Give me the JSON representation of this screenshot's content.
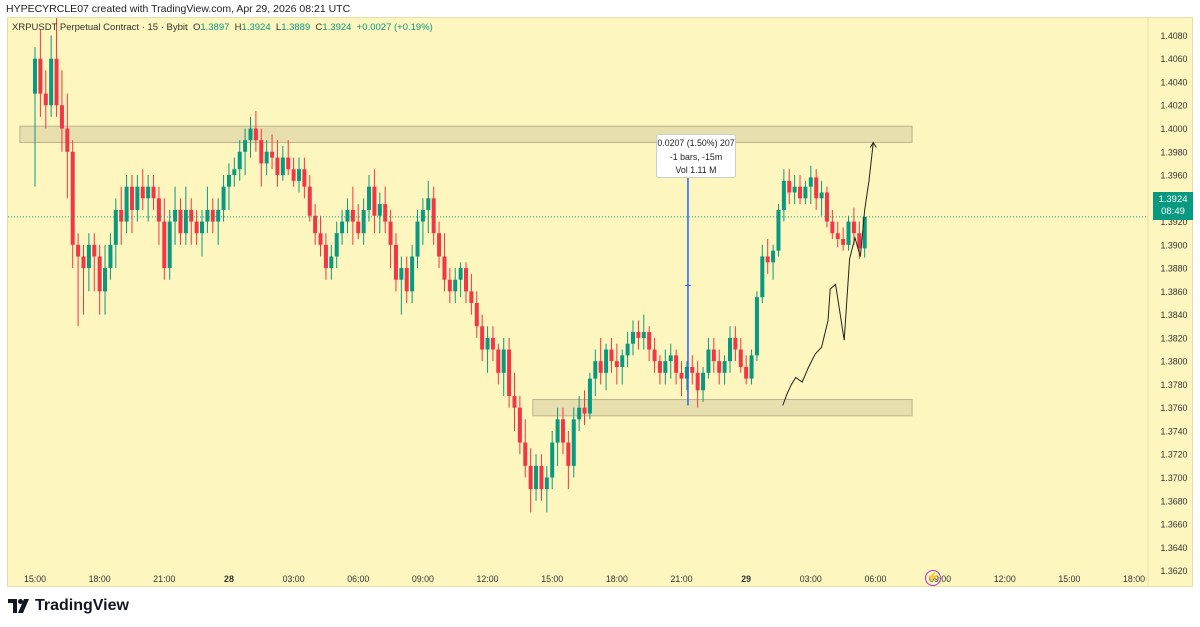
{
  "caption": "HYPECYRCLE07 created with TradingView.com, Apr 29, 2026 08:21 UTC",
  "brand": "TradingView",
  "symbol_line": {
    "symbol": "XRPUSDT Perpetual Contract · 15 · Bybit",
    "o_label": "O",
    "o": "1.3897",
    "h_label": "H",
    "h": "1.3924",
    "l_label": "L",
    "l": "1.3889",
    "c_label": "C",
    "c": "1.3924",
    "change": "+0.0027 (+0.19%)"
  },
  "last_price": {
    "price": "1.3924",
    "countdown": "08:49"
  },
  "measure": {
    "line1": "0.0207 (1.50%) 207",
    "line2": "-1 bars, -15m",
    "line3": "Vol 1.11 M"
  },
  "colors": {
    "up": "#089981",
    "down": "#f23645",
    "background": "#fdf6bf",
    "zone": "#e8dfae",
    "measure": "#2962ff"
  },
  "chart_data": {
    "type": "candlestick",
    "timeframe": "15",
    "ylim": [
      1.3605,
      1.4095
    ],
    "y_ticks": [
      "1.4080",
      "1.4060",
      "1.4040",
      "1.4020",
      "1.4000",
      "1.3980",
      "1.3960",
      "1.3940",
      "1.3920",
      "1.3900",
      "1.3880",
      "1.3860",
      "1.3840",
      "1.3820",
      "1.3800",
      "1.3780",
      "1.3760",
      "1.3740",
      "1.3720",
      "1.3700",
      "1.3680",
      "1.3660",
      "1.3640",
      "1.3620"
    ],
    "x_ticks": [
      "15:00",
      "18:00",
      "21:00",
      "28",
      "03:00",
      "06:00",
      "09:00",
      "12:00",
      "15:00",
      "18:00",
      "21:00",
      "29",
      "03:00",
      "06:00",
      "09:00",
      "12:00",
      "15:00",
      "18:00"
    ],
    "x_tick_hours": [
      0,
      3,
      6,
      9,
      12,
      15,
      18,
      21,
      24,
      27,
      30,
      33,
      36,
      39,
      42,
      45,
      48,
      51
    ],
    "zones": [
      {
        "from_hour": -0.7,
        "to_hour": 40.7,
        "low": 1.3988,
        "high": 1.4002
      },
      {
        "from_hour": 23.1,
        "to_hour": 40.7,
        "low": 1.3753,
        "high": 1.3767
      }
    ],
    "measure_arrow": {
      "hour": 30.3,
      "from": 1.3762,
      "to": 1.3969
    },
    "candles": [
      [
        1.403,
        1.407,
        1.395,
        1.406
      ],
      [
        1.406,
        1.4085,
        1.401,
        1.403
      ],
      [
        1.403,
        1.405,
        1.4,
        1.402
      ],
      [
        1.402,
        1.408,
        1.401,
        1.406
      ],
      [
        1.406,
        1.411,
        1.401,
        1.402
      ],
      [
        1.402,
        1.405,
        1.398,
        1.4
      ],
      [
        1.4,
        1.403,
        1.394,
        1.398
      ],
      [
        1.398,
        1.399,
        1.388,
        1.39
      ],
      [
        1.39,
        1.391,
        1.383,
        1.389
      ],
      [
        1.389,
        1.39,
        1.384,
        1.388
      ],
      [
        1.388,
        1.391,
        1.386,
        1.39
      ],
      [
        1.39,
        1.391,
        1.386,
        1.389
      ],
      [
        1.389,
        1.39,
        1.384,
        1.386
      ],
      [
        1.386,
        1.39,
        1.384,
        1.388
      ],
      [
        1.388,
        1.391,
        1.387,
        1.39
      ],
      [
        1.39,
        1.394,
        1.388,
        1.393
      ],
      [
        1.393,
        1.395,
        1.39,
        1.392
      ],
      [
        1.392,
        1.396,
        1.391,
        1.395
      ],
      [
        1.395,
        1.396,
        1.391,
        1.393
      ],
      [
        1.393,
        1.396,
        1.392,
        1.395
      ],
      [
        1.395,
        1.3965,
        1.393,
        1.394
      ],
      [
        1.394,
        1.396,
        1.392,
        1.395
      ],
      [
        1.395,
        1.396,
        1.393,
        1.394
      ],
      [
        1.394,
        1.395,
        1.39,
        1.392
      ],
      [
        1.392,
        1.394,
        1.387,
        1.388
      ],
      [
        1.388,
        1.393,
        1.387,
        1.392
      ],
      [
        1.392,
        1.395,
        1.39,
        1.393
      ],
      [
        1.393,
        1.394,
        1.39,
        1.391
      ],
      [
        1.391,
        1.395,
        1.39,
        1.393
      ],
      [
        1.393,
        1.394,
        1.39,
        1.392
      ],
      [
        1.392,
        1.393,
        1.39,
        1.391
      ],
      [
        1.391,
        1.393,
        1.389,
        1.392
      ],
      [
        1.392,
        1.395,
        1.391,
        1.393
      ],
      [
        1.393,
        1.394,
        1.391,
        1.392
      ],
      [
        1.392,
        1.394,
        1.39,
        1.393
      ],
      [
        1.393,
        1.396,
        1.392,
        1.395
      ],
      [
        1.395,
        1.397,
        1.393,
        1.396
      ],
      [
        1.396,
        1.3975,
        1.395,
        1.3965
      ],
      [
        1.3965,
        1.399,
        1.3955,
        1.398
      ],
      [
        1.398,
        1.4,
        1.396,
        1.399
      ],
      [
        1.399,
        1.401,
        1.3975,
        1.4
      ],
      [
        1.4,
        1.4015,
        1.398,
        1.399
      ],
      [
        1.399,
        1.4,
        1.395,
        1.397
      ],
      [
        1.397,
        1.399,
        1.396,
        1.398
      ],
      [
        1.398,
        1.3995,
        1.3965,
        1.3975
      ],
      [
        1.3975,
        1.399,
        1.395,
        1.396
      ],
      [
        1.396,
        1.3985,
        1.3955,
        1.3975
      ],
      [
        1.3975,
        1.399,
        1.396,
        1.3965
      ],
      [
        1.3965,
        1.3975,
        1.395,
        1.3955
      ],
      [
        1.3955,
        1.3975,
        1.3945,
        1.3965
      ],
      [
        1.3965,
        1.3975,
        1.394,
        1.395
      ],
      [
        1.395,
        1.396,
        1.392,
        1.3925
      ],
      [
        1.3925,
        1.3935,
        1.39,
        1.391
      ],
      [
        1.391,
        1.3925,
        1.389,
        1.39
      ],
      [
        1.39,
        1.391,
        1.387,
        1.388
      ],
      [
        1.388,
        1.39,
        1.387,
        1.389
      ],
      [
        1.389,
        1.392,
        1.388,
        1.391
      ],
      [
        1.391,
        1.393,
        1.39,
        1.392
      ],
      [
        1.392,
        1.394,
        1.391,
        1.393
      ],
      [
        1.393,
        1.395,
        1.39,
        1.392
      ],
      [
        1.392,
        1.3935,
        1.3905,
        1.391
      ],
      [
        1.391,
        1.394,
        1.39,
        1.393
      ],
      [
        1.393,
        1.396,
        1.392,
        1.395
      ],
      [
        1.395,
        1.3965,
        1.391,
        1.3925
      ],
      [
        1.3925,
        1.3945,
        1.391,
        1.3935
      ],
      [
        1.3935,
        1.395,
        1.391,
        1.392
      ],
      [
        1.392,
        1.393,
        1.388,
        1.39
      ],
      [
        1.39,
        1.391,
        1.386,
        1.387
      ],
      [
        1.387,
        1.389,
        1.384,
        1.388
      ],
      [
        1.388,
        1.389,
        1.385,
        1.386
      ],
      [
        1.386,
        1.39,
        1.385,
        1.389
      ],
      [
        1.389,
        1.393,
        1.388,
        1.392
      ],
      [
        1.392,
        1.394,
        1.39,
        1.393
      ],
      [
        1.393,
        1.3955,
        1.391,
        1.394
      ],
      [
        1.394,
        1.395,
        1.39,
        1.391
      ],
      [
        1.391,
        1.392,
        1.388,
        1.389
      ],
      [
        1.389,
        1.391,
        1.386,
        1.387
      ],
      [
        1.387,
        1.388,
        1.385,
        1.386
      ],
      [
        1.386,
        1.388,
        1.385,
        1.387
      ],
      [
        1.387,
        1.3885,
        1.3855,
        1.388
      ],
      [
        1.388,
        1.3885,
        1.385,
        1.386
      ],
      [
        1.386,
        1.3875,
        1.384,
        1.385
      ],
      [
        1.385,
        1.386,
        1.382,
        1.383
      ],
      [
        1.383,
        1.384,
        1.38,
        1.381
      ],
      [
        1.381,
        1.383,
        1.379,
        1.382
      ],
      [
        1.382,
        1.383,
        1.38,
        1.381
      ],
      [
        1.381,
        1.3815,
        1.378,
        1.379
      ],
      [
        1.379,
        1.382,
        1.377,
        1.381
      ],
      [
        1.381,
        1.382,
        1.376,
        1.377
      ],
      [
        1.377,
        1.379,
        1.374,
        1.376
      ],
      [
        1.376,
        1.377,
        1.372,
        1.373
      ],
      [
        1.373,
        1.375,
        1.37,
        1.371
      ],
      [
        1.371,
        1.3725,
        1.367,
        1.369
      ],
      [
        1.369,
        1.372,
        1.368,
        1.371
      ],
      [
        1.371,
        1.372,
        1.368,
        1.369
      ],
      [
        1.369,
        1.371,
        1.367,
        1.37
      ],
      [
        1.37,
        1.374,
        1.369,
        1.373
      ],
      [
        1.373,
        1.376,
        1.371,
        1.375
      ],
      [
        1.375,
        1.376,
        1.372,
        1.373
      ],
      [
        1.373,
        1.374,
        1.369,
        1.371
      ],
      [
        1.371,
        1.376,
        1.37,
        1.375
      ],
      [
        1.375,
        1.377,
        1.374,
        1.376
      ],
      [
        1.376,
        1.3775,
        1.3745,
        1.3755
      ],
      [
        1.3755,
        1.379,
        1.375,
        1.3785
      ],
      [
        1.3785,
        1.381,
        1.377,
        1.38
      ],
      [
        1.38,
        1.382,
        1.378,
        1.379
      ],
      [
        1.379,
        1.3815,
        1.3775,
        1.381
      ],
      [
        1.381,
        1.382,
        1.379,
        1.38
      ],
      [
        1.38,
        1.3815,
        1.378,
        1.3795
      ],
      [
        1.3795,
        1.381,
        1.378,
        1.3805
      ],
      [
        1.3805,
        1.3825,
        1.3795,
        1.3815
      ],
      [
        1.3815,
        1.3835,
        1.3805,
        1.3825
      ],
      [
        1.3825,
        1.3835,
        1.381,
        1.382
      ],
      [
        1.382,
        1.384,
        1.381,
        1.3825
      ],
      [
        1.3825,
        1.383,
        1.38,
        1.381
      ],
      [
        1.381,
        1.382,
        1.379,
        1.38
      ],
      [
        1.38,
        1.3805,
        1.378,
        1.379
      ],
      [
        1.379,
        1.381,
        1.378,
        1.38
      ],
      [
        1.38,
        1.3815,
        1.3785,
        1.3805
      ],
      [
        1.3805,
        1.381,
        1.378,
        1.379
      ],
      [
        1.379,
        1.38,
        1.377,
        1.3785
      ],
      [
        1.3785,
        1.38,
        1.3775,
        1.3795
      ],
      [
        1.3795,
        1.3805,
        1.378,
        1.379
      ],
      [
        1.379,
        1.38,
        1.376,
        1.3775
      ],
      [
        1.3775,
        1.3795,
        1.3765,
        1.379
      ],
      [
        1.379,
        1.382,
        1.3785,
        1.381
      ],
      [
        1.381,
        1.382,
        1.379,
        1.38
      ],
      [
        1.38,
        1.381,
        1.378,
        1.379
      ],
      [
        1.379,
        1.3805,
        1.378,
        1.38
      ],
      [
        1.38,
        1.383,
        1.379,
        1.382
      ],
      [
        1.382,
        1.383,
        1.38,
        1.381
      ],
      [
        1.381,
        1.382,
        1.379,
        1.3795
      ],
      [
        1.3795,
        1.3805,
        1.378,
        1.3785
      ],
      [
        1.3785,
        1.381,
        1.378,
        1.3805
      ],
      [
        1.3805,
        1.386,
        1.38,
        1.3855
      ],
      [
        1.3855,
        1.39,
        1.385,
        1.389
      ],
      [
        1.389,
        1.3905,
        1.3875,
        1.3885
      ],
      [
        1.3885,
        1.39,
        1.387,
        1.3895
      ],
      [
        1.3895,
        1.3935,
        1.389,
        1.393
      ],
      [
        1.393,
        1.3965,
        1.392,
        1.3955
      ],
      [
        1.3955,
        1.3965,
        1.3935,
        1.3945
      ],
      [
        1.3945,
        1.396,
        1.3935,
        1.395
      ],
      [
        1.395,
        1.396,
        1.3935,
        1.394
      ],
      [
        1.394,
        1.3955,
        1.3935,
        1.395
      ],
      [
        1.395,
        1.3968,
        1.3935,
        1.3958
      ],
      [
        1.3958,
        1.3965,
        1.393,
        1.394
      ],
      [
        1.394,
        1.3955,
        1.3925,
        1.3945
      ],
      [
        1.3945,
        1.395,
        1.3915,
        1.392
      ],
      [
        1.392,
        1.393,
        1.3905,
        1.391
      ],
      [
        1.391,
        1.392,
        1.3898,
        1.3905
      ],
      [
        1.3905,
        1.3915,
        1.3895,
        1.39
      ],
      [
        1.39,
        1.3925,
        1.3895,
        1.392
      ],
      [
        1.392,
        1.3932,
        1.39,
        1.391
      ],
      [
        1.391,
        1.392,
        1.3888,
        1.3897
      ],
      [
        1.3897,
        1.3924,
        1.3889,
        1.3924
      ]
    ]
  }
}
